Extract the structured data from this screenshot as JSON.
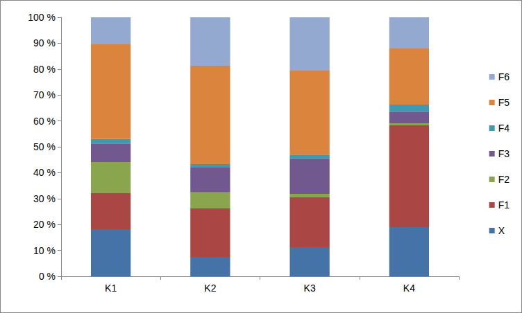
{
  "chart_data": {
    "type": "bar",
    "stacked": true,
    "grid": false,
    "legend": "right",
    "categories": [
      "K1",
      "K2",
      "K3",
      "K4"
    ],
    "series": [
      {
        "name": "X",
        "color": "#4572A7",
        "values": [
          18.2,
          7.5,
          11.2,
          19.0
        ]
      },
      {
        "name": "F1",
        "color": "#AA4643",
        "values": [
          13.9,
          18.7,
          19.3,
          39.3
        ]
      },
      {
        "name": "F2",
        "color": "#89A54E",
        "values": [
          12.0,
          6.2,
          1.3,
          0.8
        ]
      },
      {
        "name": "F3",
        "color": "#71588F",
        "values": [
          7.2,
          9.6,
          13.7,
          4.5
        ]
      },
      {
        "name": "F4",
        "color": "#4198AF",
        "values": [
          1.7,
          1.3,
          1.5,
          2.7
        ]
      },
      {
        "name": "F5",
        "color": "#DB843D",
        "values": [
          36.6,
          38.0,
          32.4,
          21.7
        ]
      },
      {
        "name": "F6",
        "color": "#93A9CF",
        "values": [
          10.4,
          18.7,
          20.6,
          12.0
        ]
      }
    ],
    "ylim": [
      0,
      100
    ],
    "yticks": [
      {
        "value": 0,
        "label": "0 %"
      },
      {
        "value": 10,
        "label": "10 %"
      },
      {
        "value": 20,
        "label": "20 %"
      },
      {
        "value": 30,
        "label": "30 %"
      },
      {
        "value": 40,
        "label": "40 %"
      },
      {
        "value": 50,
        "label": "50 %"
      },
      {
        "value": 60,
        "label": "60 %"
      },
      {
        "value": 70,
        "label": "70 %"
      },
      {
        "value": 80,
        "label": "80 %"
      },
      {
        "value": 90,
        "label": "90 %"
      },
      {
        "value": 100,
        "label": "100 %"
      }
    ]
  }
}
